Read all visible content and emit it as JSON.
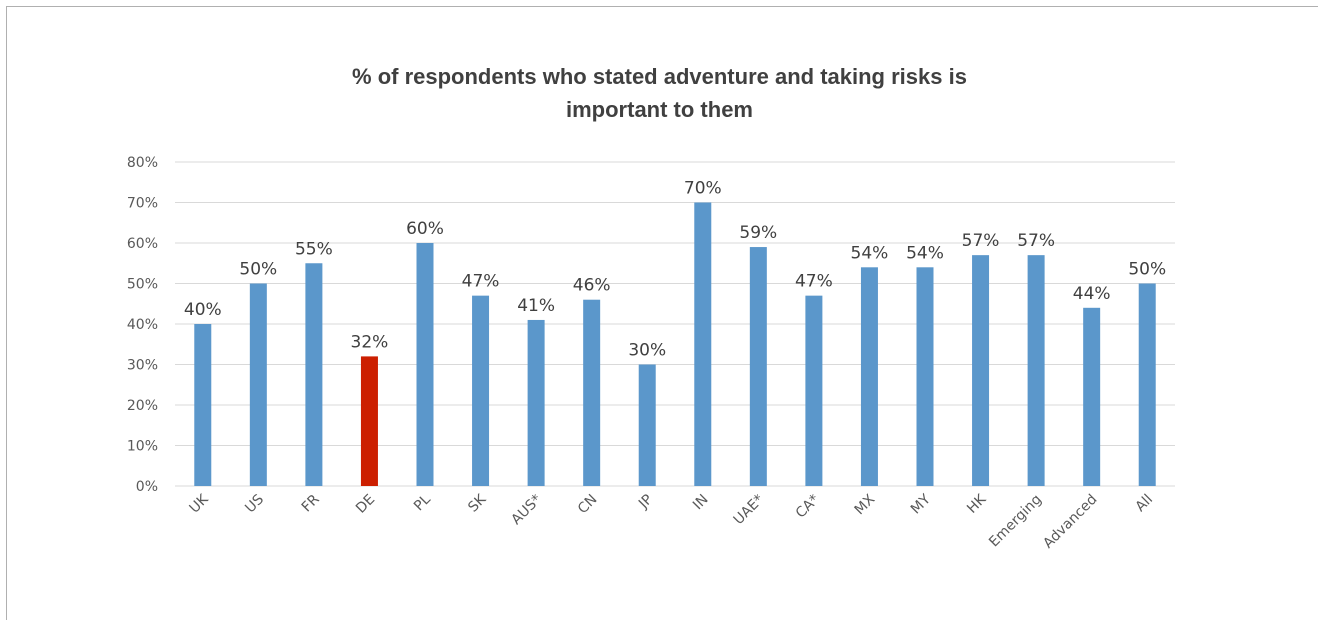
{
  "chart_data": {
    "type": "bar",
    "title": "% of respondents who stated adventure and taking risks is important to them",
    "title_lines": [
      "% of respondents who stated adventure and taking risks is",
      "important to them"
    ],
    "xlabel": "",
    "ylabel": "",
    "ylim": [
      0,
      80
    ],
    "yticks": [
      "0%",
      "10%",
      "20%",
      "30%",
      "40%",
      "50%",
      "60%",
      "70%",
      "80%"
    ],
    "categories": [
      "UK",
      "US",
      "FR",
      "DE",
      "PL",
      "SK",
      "AUS*",
      "CN",
      "JP",
      "IN",
      "UAE*",
      "CA*",
      "MX",
      "MY",
      "HK",
      "Emerging",
      "Advanced",
      "All"
    ],
    "values": [
      40,
      50,
      55,
      32,
      60,
      47,
      41,
      46,
      30,
      70,
      59,
      47,
      54,
      54,
      57,
      57,
      44,
      50
    ],
    "data_labels": [
      "40%",
      "50%",
      "55%",
      "32%",
      "60%",
      "47%",
      "41%",
      "46%",
      "30%",
      "70%",
      "59%",
      "47%",
      "54%",
      "54%",
      "57%",
      "57%",
      "44%",
      "50%"
    ],
    "grid": true,
    "legend": "none",
    "colors": {
      "default": "#5b97cb",
      "highlight": "#cc1f00",
      "gridline": "#d9d9d9"
    },
    "highlight_category": "DE"
  }
}
